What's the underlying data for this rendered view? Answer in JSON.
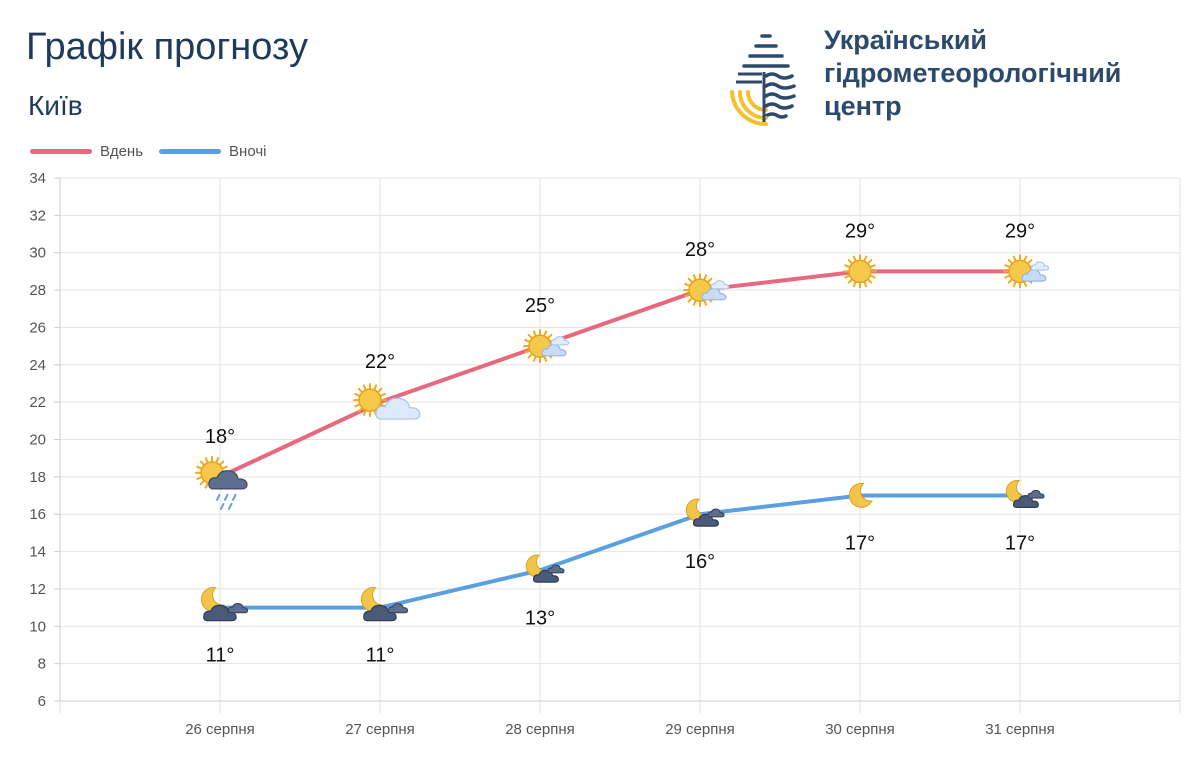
{
  "header": {
    "title": "Графік прогнозу",
    "city": "Київ"
  },
  "org": {
    "line1": "Український",
    "line2": "гідрометеорологічний",
    "line3": "центр",
    "logo_icon": "water-drop-logo-icon",
    "colors": {
      "navy": "#2c4a6b",
      "yellow": "#f5c02d"
    }
  },
  "chart_data": {
    "type": "line",
    "categories": [
      "26 серпня",
      "27 серпня",
      "28 серпня",
      "29 серпня",
      "30 серпня",
      "31 серпня"
    ],
    "series": [
      {
        "name": "Вдень",
        "color": "#e8687e",
        "values": [
          18,
          22,
          25,
          28,
          29,
          29
        ],
        "labels": [
          "18°",
          "22°",
          "25°",
          "28°",
          "29°",
          "29°"
        ],
        "icons": [
          "sun-rain-cloud-icon",
          "sun-cloud-icon",
          "sun-small-cloud-icon",
          "sun-small-cloud-icon",
          "sun-icon",
          "sun-small-cloud-icon"
        ]
      },
      {
        "name": "Вночі",
        "color": "#5a9fe0",
        "values": [
          11,
          11,
          13,
          16,
          17,
          17
        ],
        "labels": [
          "11°",
          "11°",
          "13°",
          "16°",
          "17°",
          "17°"
        ],
        "icons": [
          "moon-cloud-icon",
          "moon-cloud-icon",
          "moon-small-cloud-icon",
          "moon-small-cloud-icon",
          "moon-icon",
          "moon-small-cloud-icon"
        ]
      }
    ],
    "y_ticks": [
      "6",
      "8",
      "10",
      "12",
      "14",
      "16",
      "18",
      "20",
      "22",
      "24",
      "26",
      "28",
      "30",
      "32",
      "34"
    ],
    "ylim": [
      6,
      34
    ],
    "grid": true,
    "legend": "top-left"
  }
}
